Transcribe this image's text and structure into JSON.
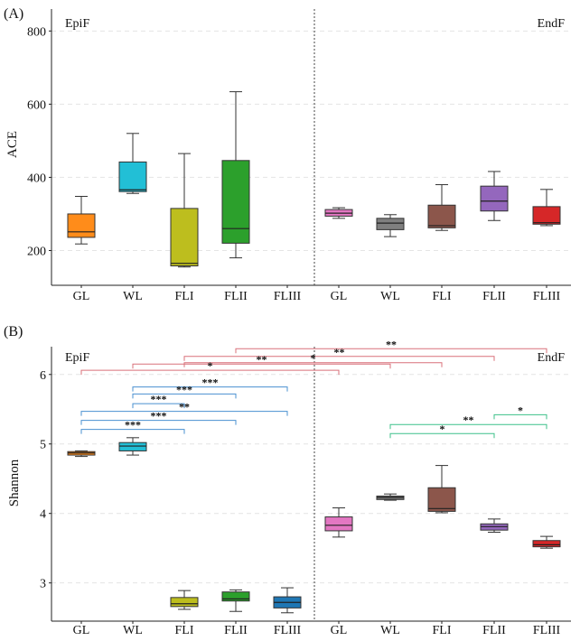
{
  "chart_data": [
    {
      "type": "box",
      "panel_label": "(A)",
      "ylabel": "ACE",
      "ylim": [
        105,
        860
      ],
      "yticks": [
        200,
        400,
        600,
        800
      ],
      "categories": [
        "GL",
        "WL",
        "FLI",
        "FLII",
        "FLIII",
        "GL",
        "WL",
        "FLI",
        "FLII",
        "FLIII"
      ],
      "group_labels": {
        "left": "EpiF",
        "right": "EndF"
      },
      "boxes": [
        {
          "group": "EpiF",
          "category": "GL",
          "color": "#FF8C1A",
          "min": 218,
          "q1": 236,
          "median": 251,
          "q3": 300,
          "max": 348
        },
        {
          "group": "EpiF",
          "category": "WL",
          "color": "#22BFD6",
          "min": 356,
          "q1": 361,
          "median": 366,
          "q3": 442,
          "max": 520
        },
        {
          "group": "EpiF",
          "category": "FLI",
          "color": "#BDBE1E",
          "min": 155,
          "q1": 158,
          "median": 165,
          "q3": 315,
          "max": 465
        },
        {
          "group": "EpiF",
          "category": "FLII",
          "color": "#2CA02C",
          "min": 180,
          "q1": 220,
          "median": 260,
          "q3": 446,
          "max": 634
        },
        {
          "group": "EndF",
          "category": "GL",
          "color": "#E377C2",
          "min": 288,
          "q1": 294,
          "median": 302,
          "q3": 312,
          "max": 317
        },
        {
          "group": "EndF",
          "category": "WL",
          "color": "#7F7F7F",
          "min": 238,
          "q1": 257,
          "median": 275,
          "q3": 288,
          "max": 298
        },
        {
          "group": "EndF",
          "category": "FLI",
          "color": "#8C564B",
          "min": 255,
          "q1": 262,
          "median": 268,
          "q3": 324,
          "max": 380
        },
        {
          "group": "EndF",
          "category": "FLII",
          "color": "#9467BD",
          "min": 282,
          "q1": 308,
          "median": 335,
          "q3": 376,
          "max": 416
        },
        {
          "group": "EndF",
          "category": "FLIII",
          "color": "#D62728",
          "min": 268,
          "q1": 272,
          "median": 276,
          "q3": 320,
          "max": 367
        }
      ]
    },
    {
      "type": "box",
      "panel_label": "(B)",
      "ylabel": "Shannon",
      "ylim": [
        2.45,
        6.4
      ],
      "yticks": [
        3,
        4,
        5,
        6
      ],
      "categories": [
        "GL",
        "WL",
        "FLI",
        "FLII",
        "FLIII",
        "GL",
        "WL",
        "FLI",
        "FLII",
        "FLIII"
      ],
      "group_labels": {
        "left": "EpiF",
        "right": "EndF"
      },
      "boxes": [
        {
          "group": "EpiF",
          "category": "GL",
          "color": "#FF8C1A",
          "min": 4.82,
          "q1": 4.84,
          "median": 4.87,
          "q3": 4.89,
          "max": 4.9
        },
        {
          "group": "EpiF",
          "category": "WL",
          "color": "#22BFD6",
          "min": 4.84,
          "q1": 4.9,
          "median": 4.97,
          "q3": 5.02,
          "max": 5.09
        },
        {
          "group": "EpiF",
          "category": "FLI",
          "color": "#BDBE1E",
          "min": 2.62,
          "q1": 2.66,
          "median": 2.7,
          "q3": 2.79,
          "max": 2.89
        },
        {
          "group": "EpiF",
          "category": "FLII",
          "color": "#2CA02C",
          "min": 2.59,
          "q1": 2.74,
          "median": 2.77,
          "q3": 2.87,
          "max": 2.9
        },
        {
          "group": "EpiF",
          "category": "FLIII",
          "color": "#1F77B4",
          "min": 2.57,
          "q1": 2.64,
          "median": 2.72,
          "q3": 2.8,
          "max": 2.93
        },
        {
          "group": "EndF",
          "category": "GL",
          "color": "#E377C2",
          "min": 3.66,
          "q1": 3.75,
          "median": 3.83,
          "q3": 3.95,
          "max": 4.08
        },
        {
          "group": "EndF",
          "category": "WL",
          "color": "#7F7F7F",
          "min": 4.19,
          "q1": 4.2,
          "median": 4.23,
          "q3": 4.25,
          "max": 4.28
        },
        {
          "group": "EndF",
          "category": "FLI",
          "color": "#8C564B",
          "min": 4.01,
          "q1": 4.03,
          "median": 4.07,
          "q3": 4.37,
          "max": 4.69
        },
        {
          "group": "EndF",
          "category": "FLII",
          "color": "#9467BD",
          "min": 3.73,
          "q1": 3.76,
          "median": 3.81,
          "q3": 3.85,
          "max": 3.92
        },
        {
          "group": "EndF",
          "category": "FLIII",
          "color": "#D62728",
          "min": 3.5,
          "q1": 3.52,
          "median": 3.55,
          "q3": 3.61,
          "max": 3.67
        }
      ],
      "significance": [
        {
          "from": 3,
          "to": 9,
          "y": 6.37,
          "label": "**",
          "color": "#D9707A"
        },
        {
          "from": 2,
          "to": 8,
          "y": 6.26,
          "label": "**",
          "color": "#D9707A"
        },
        {
          "from": 2,
          "to": 7,
          "y": 6.17,
          "label": "*",
          "color": "#D9707A"
        },
        {
          "from": 1,
          "to": 6,
          "y": 6.15,
          "label": "**",
          "color": "#D9707A"
        },
        {
          "from": 0,
          "to": 5,
          "y": 6.06,
          "label": "*",
          "color": "#D9707A"
        },
        {
          "from": 1,
          "to": 4,
          "y": 5.82,
          "label": "***",
          "color": "#4A90D0"
        },
        {
          "from": 1,
          "to": 3,
          "y": 5.72,
          "label": "***",
          "color": "#4A90D0"
        },
        {
          "from": 1,
          "to": 2,
          "y": 5.58,
          "label": "***",
          "color": "#4A90D0"
        },
        {
          "from": 0,
          "to": 4,
          "y": 5.47,
          "label": "**",
          "color": "#4A90D0"
        },
        {
          "from": 0,
          "to": 3,
          "y": 5.34,
          "label": "***",
          "color": "#4A90D0"
        },
        {
          "from": 0,
          "to": 2,
          "y": 5.21,
          "label": "***",
          "color": "#4A90D0"
        },
        {
          "from": 8,
          "to": 9,
          "y": 5.42,
          "label": "*",
          "color": "#3CC08A"
        },
        {
          "from": 6,
          "to": 9,
          "y": 5.28,
          "label": "**",
          "color": "#3CC08A"
        },
        {
          "from": 6,
          "to": 8,
          "y": 5.15,
          "label": "*",
          "color": "#3CC08A"
        }
      ]
    }
  ]
}
